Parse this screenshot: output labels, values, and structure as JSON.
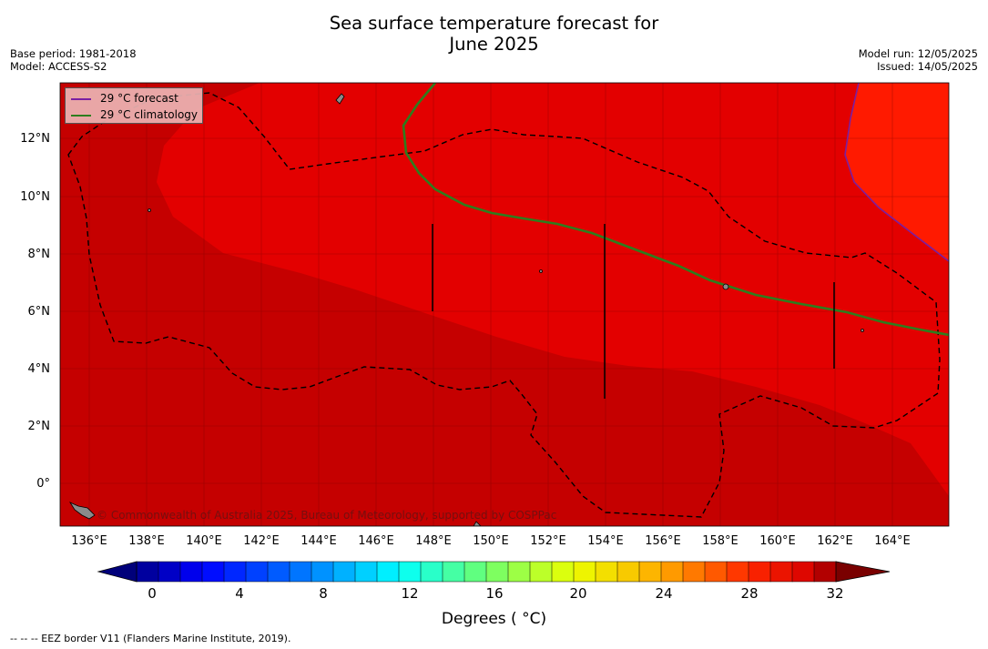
{
  "title_line1": "Sea surface temperature forecast for",
  "title_line2": "June 2025",
  "meta_left": [
    "Base period: 1981-2018",
    "Model: ACCESS-S2"
  ],
  "meta_right": [
    "Model run: 12/05/2025",
    "Issued: 14/05/2025"
  ],
  "map": {
    "lat_labels": [
      "12°N",
      "10°N",
      "8°N",
      "6°N",
      "4°N",
      "2°N",
      "0°"
    ],
    "lon_labels": [
      "136°E",
      "138°E",
      "140°E",
      "142°E",
      "144°E",
      "146°E",
      "148°E",
      "150°E",
      "152°E",
      "154°E",
      "156°E",
      "158°E",
      "160°E",
      "162°E",
      "164°E"
    ],
    "legend": [
      {
        "label": "29 °C  forecast",
        "color": "#7a1fa2"
      },
      {
        "label": "29 °C  climatology",
        "color": "#2e7d1e"
      }
    ],
    "colors": {
      "cool_zone": "#c50000",
      "mid_zone": "#e30000",
      "warm_zone": "#ff1a00"
    },
    "copyright": "© Commonwealth of Australia 2025, Bureau of Meteorology, supported by COSPPac"
  },
  "colorbar": {
    "ticks": [
      "0",
      "4",
      "8",
      "12",
      "16",
      "20",
      "24",
      "28",
      "32"
    ],
    "title": "Degrees ( °C)"
  },
  "footnote": "--  --  -- EEZ border V11 (Flanders Marine Institute, 2019)."
}
